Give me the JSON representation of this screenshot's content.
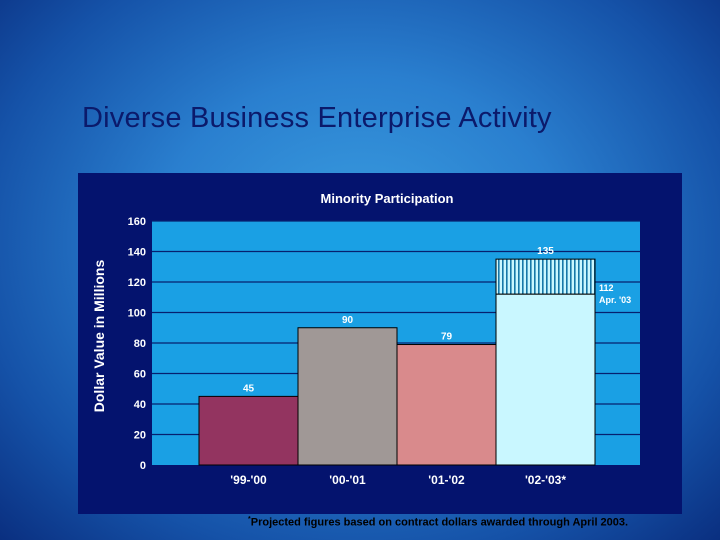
{
  "slide": {
    "title": "Diverse Business Enterprise Activity",
    "footnote_marker": "*",
    "footnote": "Projected figures based on contract dollars awarded through April 2003."
  },
  "chart_data": {
    "type": "bar",
    "title": "Minority Participation",
    "ylabel": "Dollar Value in Millions",
    "xlabel": "",
    "ylim": [
      0,
      160
    ],
    "yticks": [
      0,
      20,
      40,
      60,
      80,
      100,
      120,
      140,
      160
    ],
    "grid": true,
    "categories": [
      "'99-'00",
      "'00-'01",
      "'01-'02",
      "'02-'03*"
    ],
    "values": [
      45,
      90,
      79,
      135
    ],
    "data_labels": [
      "45",
      "90",
      "79",
      "135"
    ],
    "bar_colors": [
      "#933460",
      "#a09896",
      "#d98a8c",
      "#c9f7ff"
    ],
    "partial": {
      "category": "'02-'03*",
      "value": 112,
      "label_line1": "112",
      "label_line2": "Apr. '03"
    },
    "colors": {
      "plot_bg": "#1aa0e4",
      "panel_bg": "#04136e",
      "grid": "#06206e",
      "text": "#ffffff",
      "hatch": "#1577a8"
    }
  }
}
